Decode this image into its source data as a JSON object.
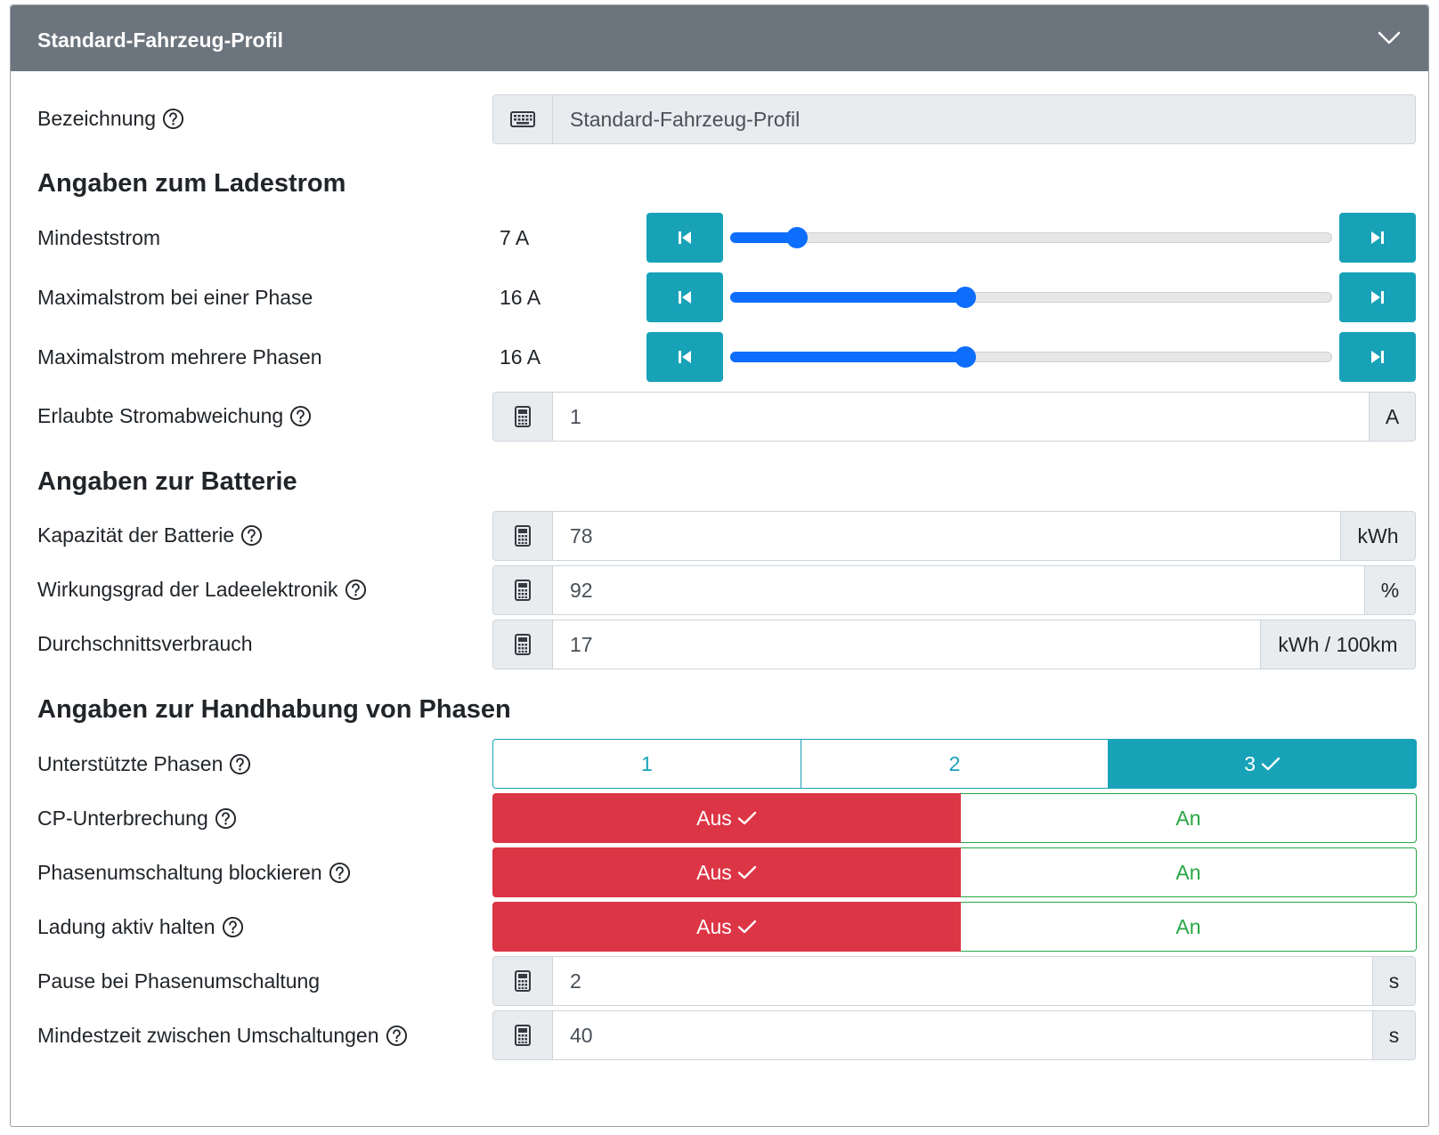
{
  "header": {
    "title": "Standard-Fahrzeug-Profil",
    "toggle_icon": "chevron-down-icon"
  },
  "bezeichnung": {
    "label": "Bezeichnung",
    "icon": "keyboard-icon",
    "value": "Standard-Fahrzeug-Profil"
  },
  "ladestrom": {
    "heading": "Angaben zum Ladestrom",
    "mindeststrom": {
      "label": "Mindeststrom",
      "value": "7 A",
      "level": 0.11
    },
    "max_eine_phase": {
      "label": "Maximalstrom bei einer Phase",
      "value": "16 A",
      "level": 0.39
    },
    "max_mehrere_phasen": {
      "label": "Maximalstrom mehrere Phasen",
      "value": "16 A",
      "level": 0.39
    },
    "stromabweichung": {
      "label": "Erlaubte Stromabweichung",
      "value": "1",
      "unit": "A"
    }
  },
  "batterie": {
    "heading": "Angaben zur Batterie",
    "kapazitaet": {
      "label": "Kapazität der Batterie",
      "value": "78",
      "unit": "kWh"
    },
    "wirkungsgrad": {
      "label": "Wirkungsgrad der Ladeelektronik",
      "value": "92",
      "unit": "%"
    },
    "verbrauch": {
      "label": "Durchschnittsverbrauch",
      "value": "17",
      "unit": "kWh / 100km"
    }
  },
  "phasen": {
    "heading": "Angaben zur Handhabung von Phasen",
    "unterstuetzt": {
      "label": "Unterstützte Phasen",
      "options": [
        "1",
        "2",
        "3"
      ],
      "selected": "3"
    },
    "cp_unterbrechung": {
      "label": "CP-Unterbrechung",
      "off": "Aus",
      "on": "An",
      "selected": "Aus"
    },
    "umschaltung_blockieren": {
      "label": "Phasenumschaltung blockieren",
      "off": "Aus",
      "on": "An",
      "selected": "Aus"
    },
    "ladung_aktiv": {
      "label": "Ladung aktiv halten",
      "off": "Aus",
      "on": "An",
      "selected": "Aus"
    },
    "pause": {
      "label": "Pause bei Phasenumschaltung",
      "value": "2",
      "unit": "s"
    },
    "mindestzeit": {
      "label": "Mindestzeit zwischen Umschaltungen",
      "value": "40",
      "unit": "s"
    }
  },
  "colors": {
    "header": "#6c757d",
    "info": "#17a2b8",
    "danger": "#dc3545",
    "success": "#28a745",
    "slider": "#0d6efd"
  }
}
